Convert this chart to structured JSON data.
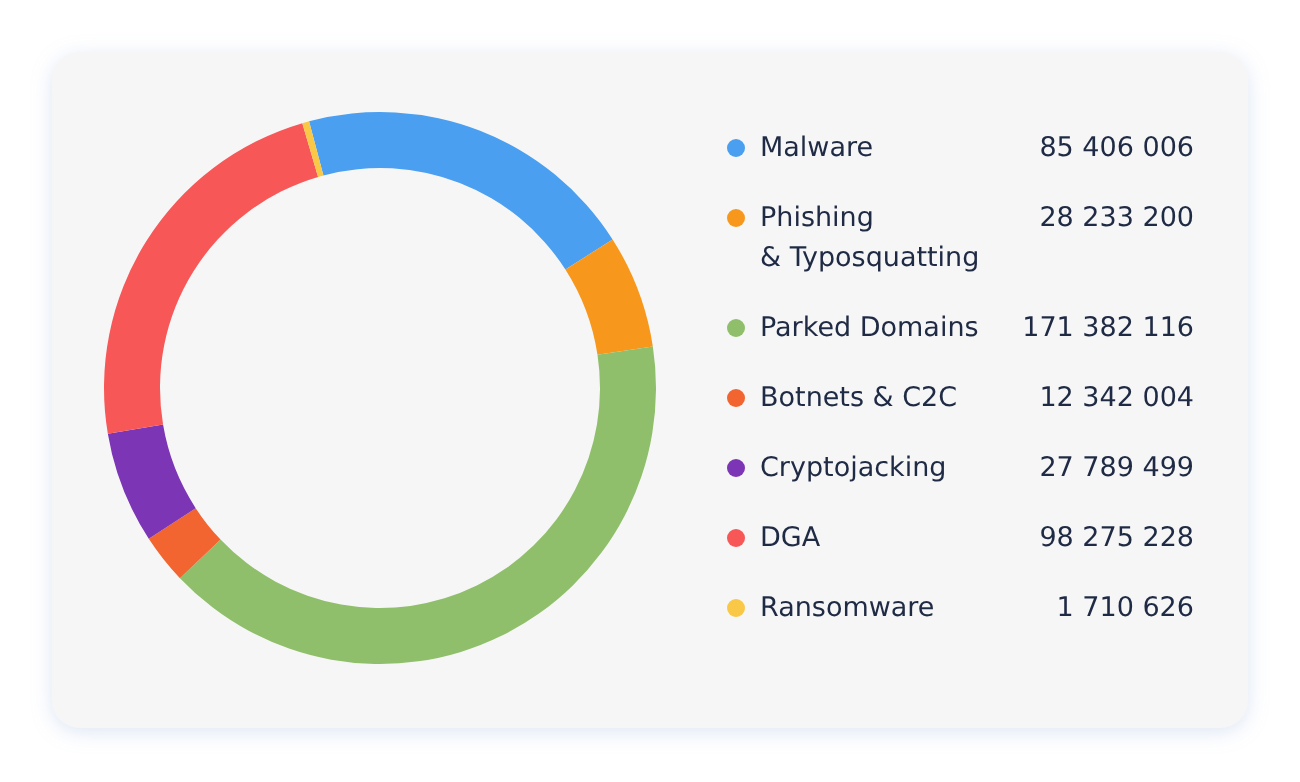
{
  "chart_data": {
    "type": "donut",
    "categories": [
      "Malware",
      "Phishing\n& Typosquatting",
      "Parked Domains",
      "Botnets & C2C",
      "Cryptojacking",
      "DGA",
      "Ransomware"
    ],
    "values": [
      85406006,
      28233200,
      171382116,
      12342004,
      27789499,
      98275228,
      1710626
    ],
    "colors": [
      "#4a9ff0",
      "#f7981d",
      "#8fbf6a",
      "#f26430",
      "#7b35b5",
      "#f75757",
      "#f9c846"
    ],
    "data_labels": true,
    "legend": "right"
  }
}
